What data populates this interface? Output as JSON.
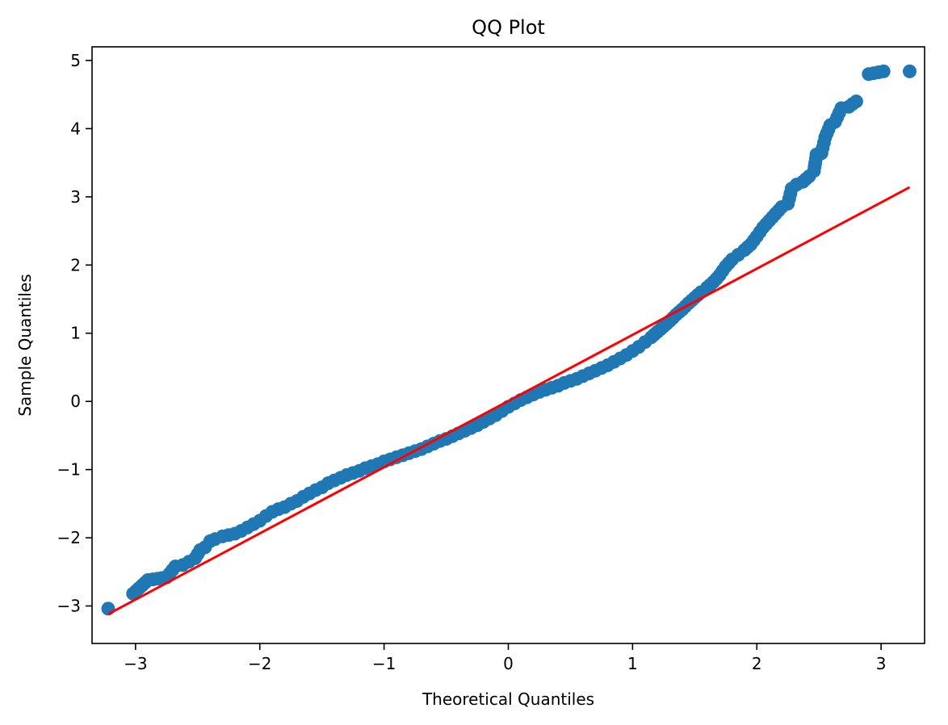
{
  "chart_data": {
    "type": "scatter",
    "title": "QQ Plot",
    "xlabel": "Theoretical Quantiles",
    "ylabel": "Sample Quantiles",
    "xlim": [
      -3.35,
      3.35
    ],
    "ylim": [
      -3.55,
      5.2
    ],
    "xticks": [
      -3,
      -2,
      -1,
      0,
      1,
      2,
      3
    ],
    "yticks": [
      -3,
      -2,
      -1,
      0,
      1,
      2,
      3,
      4,
      5
    ],
    "xtick_labels": [
      "−3",
      "−2",
      "−1",
      "0",
      "1",
      "2",
      "3"
    ],
    "ytick_labels": [
      "−3",
      "−2",
      "−1",
      "0",
      "1",
      "2",
      "3",
      "4",
      "5"
    ],
    "grid": false,
    "legend": "none",
    "colors": {
      "points": "#1f77b4",
      "reference_line": "#ff0000",
      "axes": "#000000"
    },
    "series": [
      {
        "type": "scatter",
        "points": [
          [
            -3.22,
            -3.04
          ],
          [
            -3.02,
            -2.82
          ],
          [
            -2.9,
            -2.62
          ],
          [
            -2.82,
            -2.6
          ],
          [
            -2.75,
            -2.58
          ],
          [
            -2.68,
            -2.42
          ],
          [
            -2.62,
            -2.4
          ],
          [
            -2.57,
            -2.35
          ],
          [
            -2.52,
            -2.3
          ],
          [
            -2.48,
            -2.18
          ],
          [
            -2.44,
            -2.14
          ],
          [
            -2.4,
            -2.05
          ],
          [
            -2.36,
            -2.02
          ],
          [
            -2.3,
            -1.98
          ],
          [
            -2.25,
            -1.96
          ],
          [
            -2.2,
            -1.94
          ],
          [
            -2.15,
            -1.9
          ],
          [
            -2.1,
            -1.85
          ],
          [
            -2.05,
            -1.8
          ],
          [
            -2.0,
            -1.75
          ],
          [
            -1.95,
            -1.68
          ],
          [
            -1.9,
            -1.62
          ],
          [
            -1.85,
            -1.58
          ],
          [
            -1.8,
            -1.55
          ],
          [
            -1.75,
            -1.5
          ],
          [
            -1.7,
            -1.46
          ],
          [
            -1.65,
            -1.4
          ],
          [
            -1.6,
            -1.35
          ],
          [
            -1.55,
            -1.3
          ],
          [
            -1.5,
            -1.26
          ],
          [
            -1.45,
            -1.2
          ],
          [
            -1.4,
            -1.16
          ],
          [
            -1.35,
            -1.12
          ],
          [
            -1.3,
            -1.08
          ],
          [
            -1.25,
            -1.05
          ],
          [
            -1.2,
            -1.02
          ],
          [
            -1.15,
            -0.98
          ],
          [
            -1.1,
            -0.95
          ],
          [
            -1.05,
            -0.92
          ],
          [
            -1.0,
            -0.88
          ],
          [
            -0.95,
            -0.85
          ],
          [
            -0.9,
            -0.82
          ],
          [
            -0.85,
            -0.79
          ],
          [
            -0.8,
            -0.76
          ],
          [
            -0.75,
            -0.73
          ],
          [
            -0.7,
            -0.7
          ],
          [
            -0.65,
            -0.66
          ],
          [
            -0.6,
            -0.62
          ],
          [
            -0.55,
            -0.58
          ],
          [
            -0.5,
            -0.55
          ],
          [
            -0.45,
            -0.51
          ],
          [
            -0.4,
            -0.47
          ],
          [
            -0.35,
            -0.43
          ],
          [
            -0.3,
            -0.39
          ],
          [
            -0.25,
            -0.35
          ],
          [
            -0.2,
            -0.3
          ],
          [
            -0.15,
            -0.25
          ],
          [
            -0.1,
            -0.2
          ],
          [
            -0.05,
            -0.14
          ],
          [
            0.0,
            -0.08
          ],
          [
            0.05,
            -0.03
          ],
          [
            0.1,
            0.02
          ],
          [
            0.15,
            0.06
          ],
          [
            0.2,
            0.1
          ],
          [
            0.25,
            0.14
          ],
          [
            0.3,
            0.17
          ],
          [
            0.35,
            0.2
          ],
          [
            0.4,
            0.23
          ],
          [
            0.45,
            0.27
          ],
          [
            0.5,
            0.3
          ],
          [
            0.55,
            0.33
          ],
          [
            0.6,
            0.37
          ],
          [
            0.65,
            0.41
          ],
          [
            0.7,
            0.45
          ],
          [
            0.75,
            0.49
          ],
          [
            0.8,
            0.53
          ],
          [
            0.85,
            0.58
          ],
          [
            0.9,
            0.63
          ],
          [
            0.95,
            0.68
          ],
          [
            1.0,
            0.74
          ],
          [
            1.05,
            0.8
          ],
          [
            1.1,
            0.87
          ],
          [
            1.15,
            0.94
          ],
          [
            1.2,
            1.02
          ],
          [
            1.25,
            1.1
          ],
          [
            1.3,
            1.18
          ],
          [
            1.35,
            1.27
          ],
          [
            1.4,
            1.35
          ],
          [
            1.45,
            1.44
          ],
          [
            1.5,
            1.52
          ],
          [
            1.55,
            1.6
          ],
          [
            1.6,
            1.67
          ],
          [
            1.65,
            1.75
          ],
          [
            1.7,
            1.85
          ],
          [
            1.75,
            1.98
          ],
          [
            1.8,
            2.08
          ],
          [
            1.85,
            2.15
          ],
          [
            1.9,
            2.22
          ],
          [
            1.95,
            2.3
          ],
          [
            2.0,
            2.42
          ],
          [
            2.05,
            2.55
          ],
          [
            2.1,
            2.65
          ],
          [
            2.15,
            2.75
          ],
          [
            2.2,
            2.85
          ],
          [
            2.25,
            2.9
          ],
          [
            2.28,
            3.12
          ],
          [
            2.32,
            3.18
          ],
          [
            2.37,
            3.22
          ],
          [
            2.42,
            3.3
          ],
          [
            2.46,
            3.38
          ],
          [
            2.48,
            3.62
          ],
          [
            2.52,
            3.64
          ],
          [
            2.55,
            3.87
          ],
          [
            2.59,
            4.05
          ],
          [
            2.63,
            4.1
          ],
          [
            2.68,
            4.3
          ],
          [
            2.74,
            4.32
          ],
          [
            2.8,
            4.4
          ],
          [
            2.9,
            4.8
          ],
          [
            3.02,
            4.84
          ],
          [
            3.23,
            4.84
          ]
        ]
      },
      {
        "type": "line",
        "points": [
          [
            -3.22,
            -3.12
          ],
          [
            3.23,
            3.14
          ]
        ]
      }
    ]
  }
}
